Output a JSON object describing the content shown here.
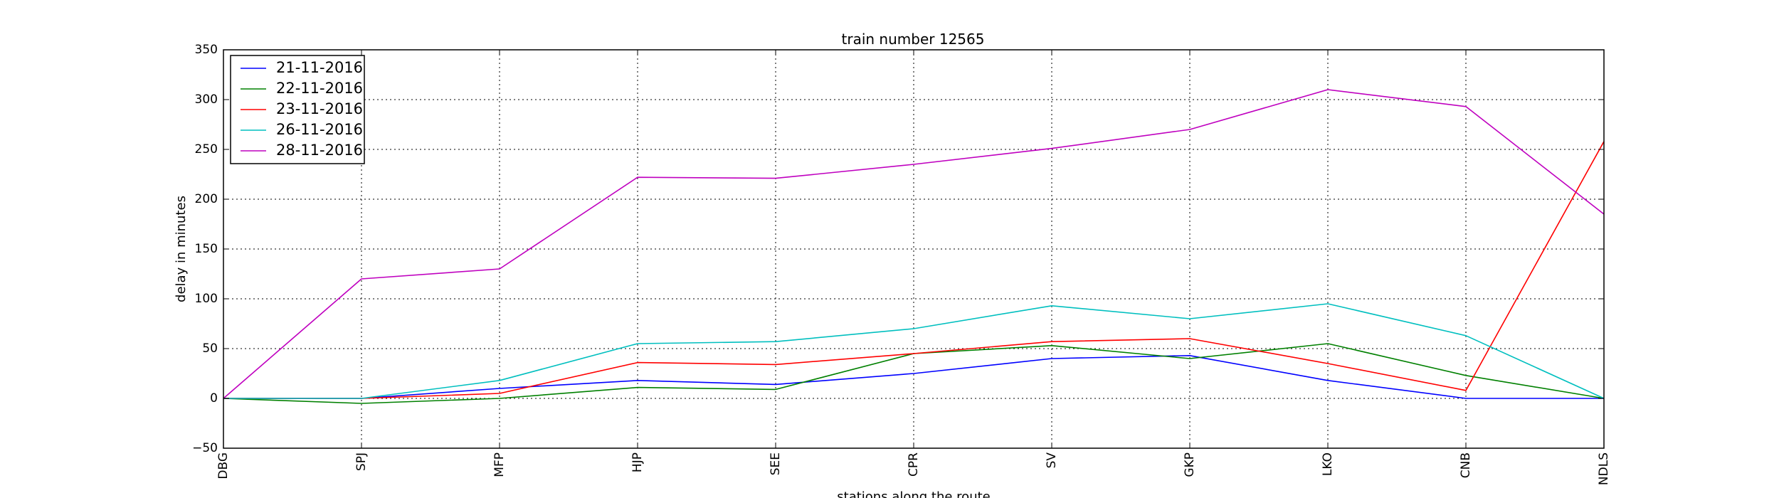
{
  "chart_data": {
    "type": "line",
    "title": "train number 12565",
    "xlabel": "stations along the route",
    "ylabel": "delay in minutes",
    "categories": [
      "DBG",
      "SPJ",
      "MFP",
      "HJP",
      "SEE",
      "CPR",
      "SV",
      "GKP",
      "LKO",
      "CNB",
      "NDLS"
    ],
    "ylim": [
      -50,
      350
    ],
    "yticks": [
      "−50",
      "0",
      "50",
      "100",
      "150",
      "200",
      "250",
      "300",
      "350"
    ],
    "ytick_values": [
      -50,
      0,
      50,
      100,
      150,
      200,
      250,
      300,
      350
    ],
    "grid": true,
    "legend_position": "top-left",
    "series": [
      {
        "name": "21-11-2016",
        "color": "#0000ff",
        "values": [
          0,
          0,
          10,
          18,
          14,
          25,
          40,
          43,
          18,
          0,
          0
        ]
      },
      {
        "name": "22-11-2016",
        "color": "#008000",
        "values": [
          0,
          -5,
          0,
          11,
          9,
          45,
          53,
          40,
          55,
          23,
          0
        ]
      },
      {
        "name": "23-11-2016",
        "color": "#ff0000",
        "values": [
          0,
          0,
          5,
          36,
          34,
          45,
          57,
          60,
          35,
          8,
          258
        ]
      },
      {
        "name": "26-11-2016",
        "color": "#00bfbf",
        "values": [
          0,
          0,
          18,
          55,
          57,
          70,
          93,
          80,
          95,
          63,
          0
        ]
      },
      {
        "name": "28-11-2016",
        "color": "#bf00bf",
        "values": [
          0,
          120,
          130,
          222,
          221,
          235,
          251,
          270,
          310,
          293,
          185
        ]
      }
    ]
  }
}
